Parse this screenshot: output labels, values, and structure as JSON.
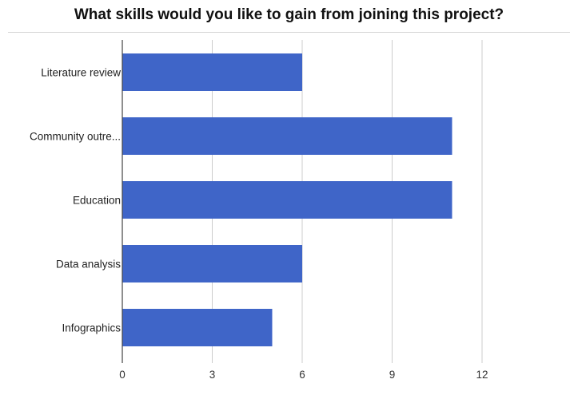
{
  "chart_data": {
    "type": "bar",
    "orientation": "horizontal",
    "title": "What skills would you like to gain from joining this project?",
    "categories": [
      "Literature review",
      "Community outre...",
      "Education",
      "Data analysis",
      "Infographics"
    ],
    "values": [
      6,
      11,
      11,
      6,
      5
    ],
    "x_ticks": [
      "0",
      "3",
      "6",
      "9",
      "12"
    ],
    "xlim": [
      0,
      15
    ],
    "grid": true,
    "legend": "none",
    "bar_color": "#3f65c8",
    "grid_color": "#cccccc",
    "axis_color": "#444444"
  }
}
